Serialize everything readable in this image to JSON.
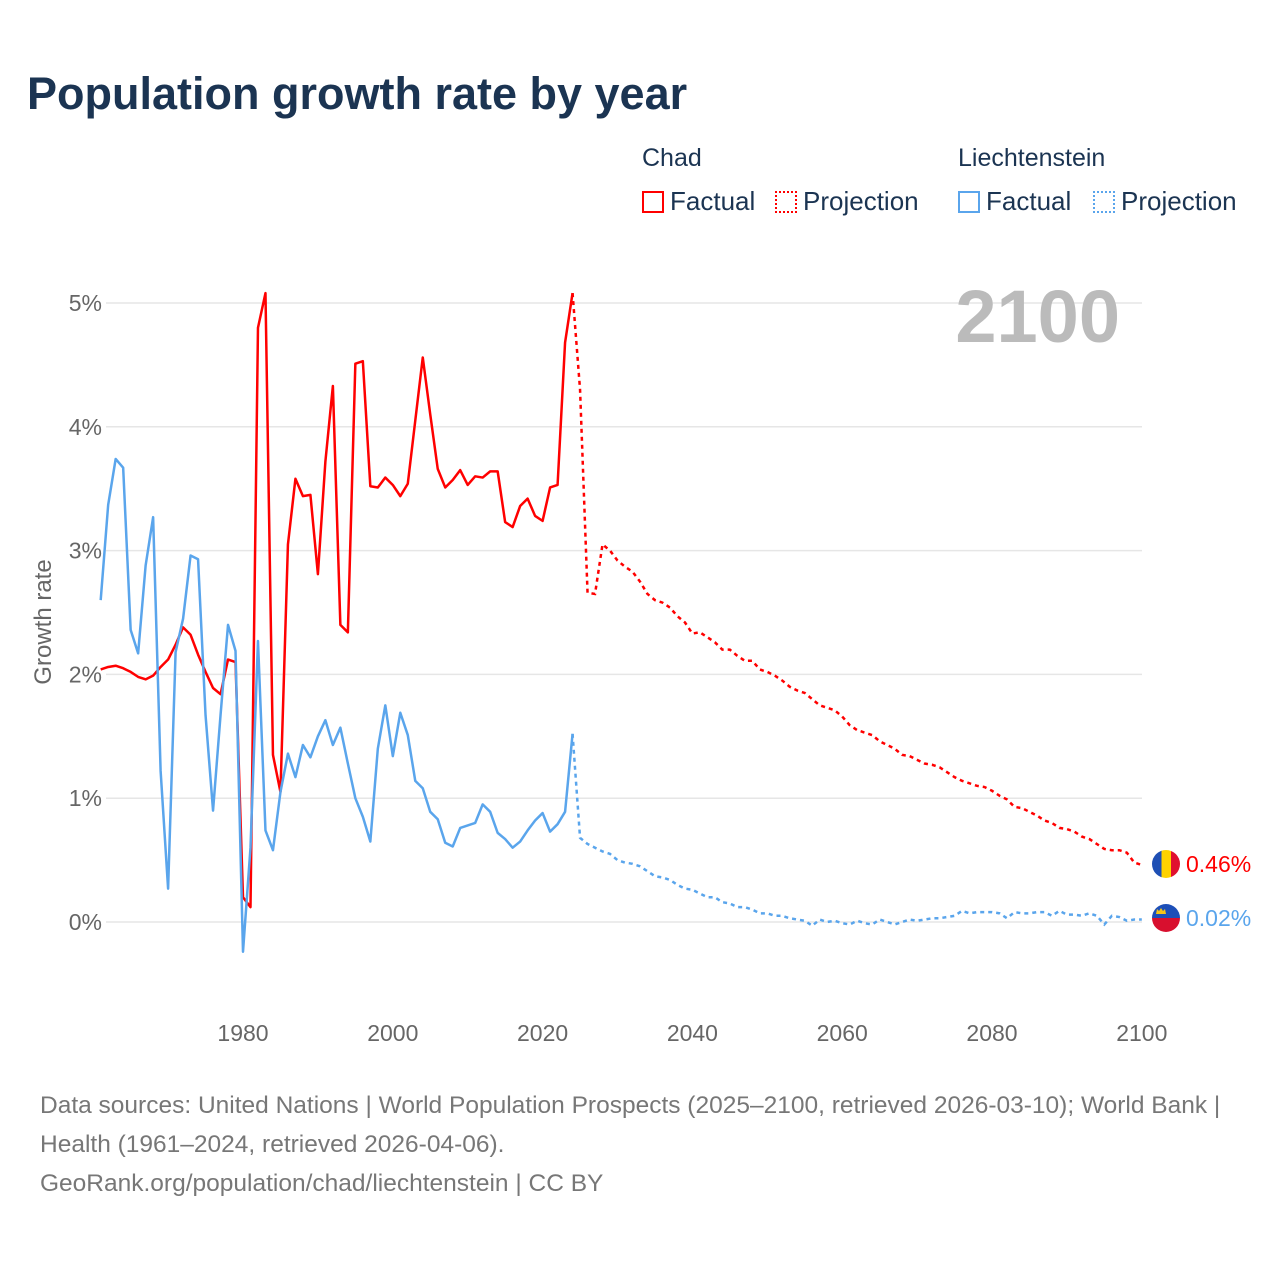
{
  "title": "Population growth rate by year",
  "legend": {
    "groups": [
      {
        "name": "Chad",
        "factual": "Factual",
        "projection": "Projection",
        "color": "#ff0000"
      },
      {
        "name": "Liechtenstein",
        "factual": "Factual",
        "projection": "Projection",
        "color": "#5aa5ec"
      }
    ]
  },
  "year_overlay": "2100",
  "footer": {
    "sources": "Data sources: United Nations | World Population Prospects (2025–2100, retrieved 2026-03-10); World Bank | Health (1961–2024, retrieved 2026-04-06).",
    "credit": "GeoRank.org/population/chad/liechtenstein | CC BY"
  },
  "chart_data": {
    "type": "line",
    "title": "Population growth rate by year",
    "xlabel": "",
    "ylabel": "Growth rate",
    "xlim": [
      1961,
      2100
    ],
    "ylim": [
      -0.5,
      5.2
    ],
    "x_ticks": [
      "1980",
      "2000",
      "2020",
      "2040",
      "2060",
      "2080",
      "2100"
    ],
    "x_tick_values": [
      1980,
      2000,
      2020,
      2040,
      2060,
      2080,
      2100
    ],
    "y_ticks": [
      "0%",
      "1%",
      "2%",
      "3%",
      "4%",
      "5%"
    ],
    "y_tick_values": [
      0,
      1,
      2,
      3,
      4,
      5
    ],
    "grid": true,
    "legend_position": "top-right",
    "factual_start": 1961,
    "projection_start": 2025,
    "series": [
      {
        "name": "Chad",
        "color": "#ff0000",
        "end_label": "0.46%",
        "factual": [
          2.04,
          2.06,
          2.07,
          2.05,
          2.02,
          1.98,
          1.96,
          1.99,
          2.06,
          2.12,
          2.24,
          2.38,
          2.32,
          2.16,
          2.02,
          1.89,
          1.84,
          2.12,
          2.1,
          0.2,
          0.12,
          4.8,
          5.08,
          1.35,
          1.05,
          3.05,
          3.58,
          3.44,
          3.45,
          2.81,
          3.72,
          4.33,
          2.4,
          2.34,
          4.51,
          4.53,
          3.52,
          3.51,
          3.59,
          3.53,
          3.44,
          3.54,
          4.05,
          4.56,
          4.1,
          3.66,
          3.51,
          3.57,
          3.65,
          3.53,
          3.6,
          3.59,
          3.64,
          3.64,
          3.23,
          3.19,
          3.36,
          3.42,
          3.28,
          3.24,
          3.51,
          3.53,
          4.68,
          5.08
        ],
        "projection": [
          4.3,
          2.66,
          2.65,
          3.05,
          3.0,
          2.92,
          2.87,
          2.83,
          2.75,
          2.65,
          2.6,
          2.58,
          2.54,
          2.47,
          2.42,
          2.33,
          2.34,
          2.3,
          2.26,
          2.2,
          2.2,
          2.15,
          2.11,
          2.11,
          2.04,
          2.02,
          1.99,
          1.95,
          1.9,
          1.87,
          1.85,
          1.8,
          1.75,
          1.73,
          1.71,
          1.66,
          1.59,
          1.55,
          1.53,
          1.51,
          1.46,
          1.43,
          1.4,
          1.35,
          1.34,
          1.31,
          1.28,
          1.27,
          1.25,
          1.21,
          1.17,
          1.14,
          1.12,
          1.1,
          1.09,
          1.06,
          1.02,
          0.99,
          0.93,
          0.92,
          0.89,
          0.86,
          0.82,
          0.8,
          0.76,
          0.75,
          0.73,
          0.69,
          0.67,
          0.63,
          0.59,
          0.58,
          0.58,
          0.56,
          0.48,
          0.46
        ]
      },
      {
        "name": "Liechtenstein",
        "color": "#5aa5ec",
        "end_label": "0.02%",
        "factual": [
          2.6,
          3.37,
          3.74,
          3.67,
          2.36,
          2.17,
          2.88,
          3.27,
          1.22,
          0.27,
          2.18,
          2.45,
          2.96,
          2.93,
          1.67,
          0.9,
          1.67,
          2.4,
          2.19,
          -0.24,
          0.6,
          2.27,
          0.74,
          0.58,
          1.05,
          1.36,
          1.17,
          1.43,
          1.33,
          1.5,
          1.63,
          1.43,
          1.57,
          1.28,
          1.0,
          0.85,
          0.65,
          1.4,
          1.75,
          1.34,
          1.69,
          1.51,
          1.14,
          1.08,
          0.89,
          0.83,
          0.64,
          0.61,
          0.76,
          0.78,
          0.8,
          0.95,
          0.89,
          0.72,
          0.67,
          0.6,
          0.65,
          0.74,
          0.82,
          0.88,
          0.73,
          0.79,
          0.89,
          1.52
        ],
        "projection": [
          0.68,
          0.63,
          0.6,
          0.57,
          0.55,
          0.5,
          0.48,
          0.47,
          0.45,
          0.41,
          0.37,
          0.36,
          0.34,
          0.3,
          0.27,
          0.26,
          0.23,
          0.2,
          0.2,
          0.16,
          0.15,
          0.12,
          0.12,
          0.1,
          0.07,
          0.07,
          0.05,
          0.05,
          0.03,
          0.02,
          0.01,
          -0.03,
          0.02,
          0.0,
          0.01,
          -0.01,
          -0.02,
          0.01,
          -0.01,
          -0.02,
          0.02,
          0.0,
          -0.02,
          0.0,
          0.02,
          0.01,
          0.02,
          0.03,
          0.03,
          0.04,
          0.05,
          0.09,
          0.07,
          0.08,
          0.08,
          0.08,
          0.07,
          0.03,
          0.08,
          0.07,
          0.07,
          0.08,
          0.08,
          0.05,
          0.09,
          0.06,
          0.06,
          0.05,
          0.07,
          0.05,
          -0.02,
          0.05,
          0.04,
          0.01,
          0.02,
          0.02
        ]
      }
    ]
  }
}
